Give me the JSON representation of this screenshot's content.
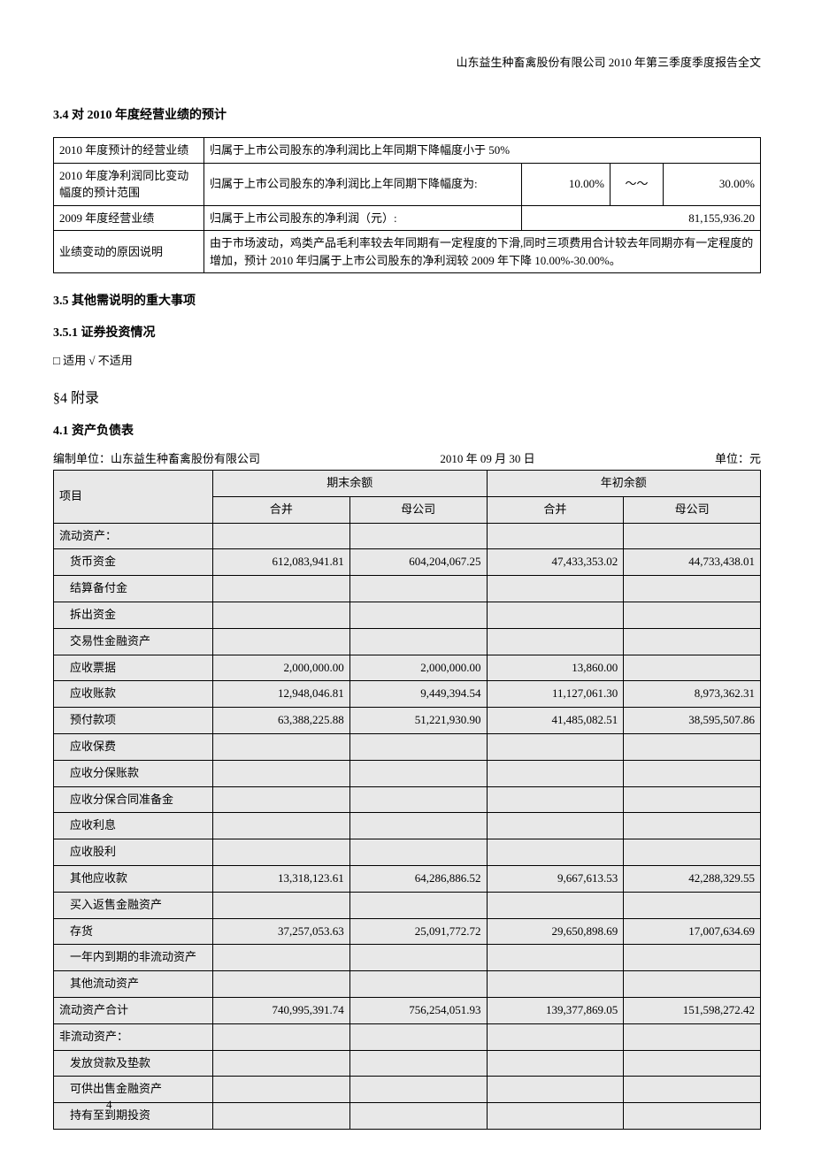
{
  "header": {
    "company_report_title": "山东益生种畜禽股份有限公司 2010 年第三季度季度报告全文"
  },
  "sections": {
    "s34_title": "3.4 对 2010 年度经营业绩的预计",
    "s35_title": "3.5 其他需说明的重大事项",
    "s351_title": "3.5.1 证券投资情况",
    "s351_checkbox": "□ 适用 √ 不适用",
    "s4_title": "§4  附录",
    "s41_title": "4.1 资产负债表"
  },
  "table1": {
    "r1c1": "2010 年度预计的经营业绩",
    "r1c2": "归属于上市公司股东的净利润比上年同期下降幅度小于 50%",
    "r2c1": "2010 年度净利润同比变动幅度的预计范围",
    "r2c2": "归属于上市公司股东的净利润比上年同期下降幅度为:",
    "r2v1": "10.00%",
    "r2sep": "～～",
    "r2v2": "30.00%",
    "r3c1": "2009 年度经营业绩",
    "r3c2": "归属于上市公司股东的净利润（元）:",
    "r3v": "81,155,936.20",
    "r4c1": "业绩变动的原因说明",
    "r4c2": "由于市场波动，鸡类产品毛利率较去年同期有一定程度的下滑,同时三项费用合计较去年同期亦有一定程度的增加，预计 2010 年归属于上市公司股东的净利润较 2009 年下降 10.00%-30.00%。"
  },
  "balance_meta": {
    "prepared_by_label": "编制单位：山东益生种畜禽股份有限公司",
    "date": "2010 年 09 月 30 日",
    "unit": "单位：元"
  },
  "balance_headers": {
    "item": "项目",
    "ending": "期末余额",
    "beginning": "年初余额",
    "consolidated": "合并",
    "parent": "母公司"
  },
  "balance_rows": [
    {
      "label": "流动资产：",
      "indent": false,
      "vals": [
        "",
        "",
        "",
        ""
      ]
    },
    {
      "label": "货币资金",
      "indent": true,
      "vals": [
        "612,083,941.81",
        "604,204,067.25",
        "47,433,353.02",
        "44,733,438.01"
      ]
    },
    {
      "label": "结算备付金",
      "indent": true,
      "vals": [
        "",
        "",
        "",
        ""
      ]
    },
    {
      "label": "拆出资金",
      "indent": true,
      "vals": [
        "",
        "",
        "",
        ""
      ]
    },
    {
      "label": "交易性金融资产",
      "indent": true,
      "vals": [
        "",
        "",
        "",
        ""
      ]
    },
    {
      "label": "应收票据",
      "indent": true,
      "vals": [
        "2,000,000.00",
        "2,000,000.00",
        "13,860.00",
        ""
      ]
    },
    {
      "label": "应收账款",
      "indent": true,
      "vals": [
        "12,948,046.81",
        "9,449,394.54",
        "11,127,061.30",
        "8,973,362.31"
      ]
    },
    {
      "label": "预付款项",
      "indent": true,
      "vals": [
        "63,388,225.88",
        "51,221,930.90",
        "41,485,082.51",
        "38,595,507.86"
      ]
    },
    {
      "label": "应收保费",
      "indent": true,
      "vals": [
        "",
        "",
        "",
        ""
      ]
    },
    {
      "label": "应收分保账款",
      "indent": true,
      "vals": [
        "",
        "",
        "",
        ""
      ]
    },
    {
      "label": "应收分保合同准备金",
      "indent": true,
      "vals": [
        "",
        "",
        "",
        ""
      ]
    },
    {
      "label": "应收利息",
      "indent": true,
      "vals": [
        "",
        "",
        "",
        ""
      ]
    },
    {
      "label": "应收股利",
      "indent": true,
      "vals": [
        "",
        "",
        "",
        ""
      ]
    },
    {
      "label": "其他应收款",
      "indent": true,
      "vals": [
        "13,318,123.61",
        "64,286,886.52",
        "9,667,613.53",
        "42,288,329.55"
      ]
    },
    {
      "label": "买入返售金融资产",
      "indent": true,
      "vals": [
        "",
        "",
        "",
        ""
      ]
    },
    {
      "label": "存货",
      "indent": true,
      "vals": [
        "37,257,053.63",
        "25,091,772.72",
        "29,650,898.69",
        "17,007,634.69"
      ]
    },
    {
      "label": "一年内到期的非流动资产",
      "indent": true,
      "vals": [
        "",
        "",
        "",
        ""
      ]
    },
    {
      "label": "其他流动资产",
      "indent": true,
      "vals": [
        "",
        "",
        "",
        ""
      ]
    },
    {
      "label": "流动资产合计",
      "indent": false,
      "vals": [
        "740,995,391.74",
        "756,254,051.93",
        "139,377,869.05",
        "151,598,272.42"
      ]
    },
    {
      "label": "非流动资产：",
      "indent": false,
      "vals": [
        "",
        "",
        "",
        ""
      ]
    },
    {
      "label": "发放贷款及垫款",
      "indent": true,
      "vals": [
        "",
        "",
        "",
        ""
      ]
    },
    {
      "label": "可供出售金融资产",
      "indent": true,
      "vals": [
        "",
        "",
        "",
        ""
      ]
    },
    {
      "label": "持有至到期投资",
      "indent": true,
      "vals": [
        "",
        "",
        "",
        ""
      ]
    }
  ],
  "page_number": "4"
}
